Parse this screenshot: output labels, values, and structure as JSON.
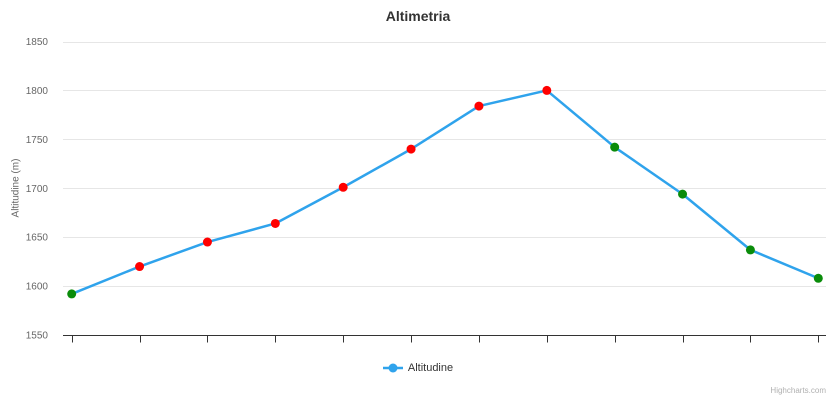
{
  "chart_data": {
    "type": "line",
    "title": "Altimetria",
    "xlabel": "",
    "ylabel": "Altitudine (m)",
    "ylim": [
      1550,
      1850
    ],
    "y_ticks": [
      1550,
      1600,
      1650,
      1700,
      1750,
      1800,
      1850
    ],
    "x_tick_count": 12,
    "grid": true,
    "legend_position": "bottom-center",
    "credits": "Highcharts.com",
    "series": [
      {
        "name": "Altitudine",
        "line_color": "#2fa3ec",
        "values": [
          1592,
          1620,
          1645,
          1664,
          1701,
          1740,
          1784,
          1800,
          1742,
          1694,
          1637,
          1608
        ],
        "point_colors": [
          "#0a8c0a",
          "#ff0000",
          "#ff0000",
          "#ff0000",
          "#ff0000",
          "#ff0000",
          "#ff0000",
          "#ff0000",
          "#0a8c0a",
          "#0a8c0a",
          "#0a8c0a",
          "#0a8c0a"
        ]
      }
    ],
    "colors": {
      "grid_line": "#e6e6e6",
      "x_axis_line": "#333333",
      "title_text": "#333333",
      "y_axis_label_text": "#666666",
      "legend_text": "#333333",
      "credits_text": "#b0b0b0"
    }
  }
}
